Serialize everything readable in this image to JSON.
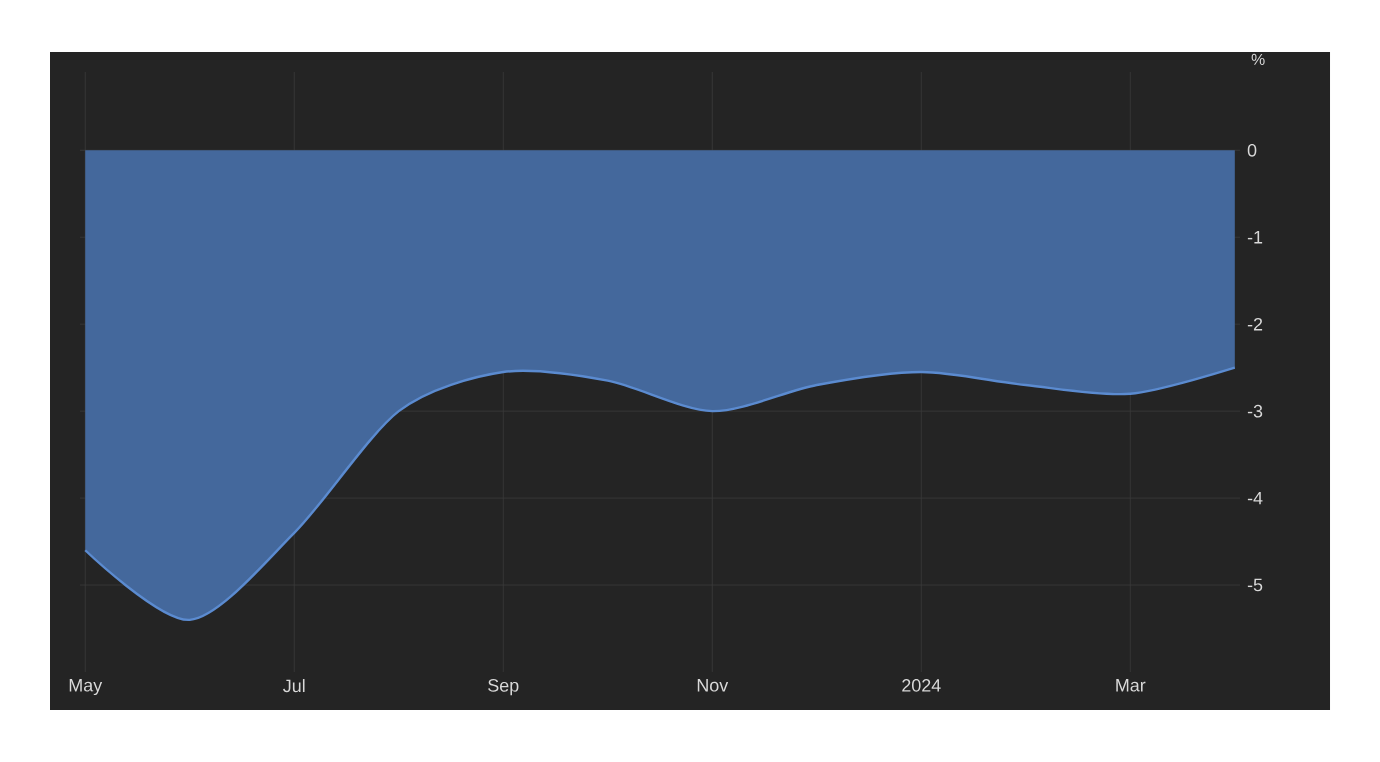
{
  "chart_data": {
    "type": "area",
    "ylabel": "%",
    "x": [
      "2023-05",
      "2023-06",
      "2023-07",
      "2023-08",
      "2023-09",
      "2023-10",
      "2023-11",
      "2023-12",
      "2024-01",
      "2024-02",
      "2024-03",
      "2024-04"
    ],
    "values": [
      -4.6,
      -5.4,
      -4.4,
      -3.0,
      -2.55,
      -2.65,
      -3.0,
      -2.7,
      -2.55,
      -2.7,
      -2.8,
      -2.5
    ],
    "color": "#5b8bd0",
    "xlim": [
      "2023-05",
      "2024-04"
    ],
    "xticks": [
      {
        "value": "2023-05",
        "label": "May"
      },
      {
        "value": "2023-07",
        "label": "Jul"
      },
      {
        "value": "2023-09",
        "label": "Sep"
      },
      {
        "value": "2023-11",
        "label": "Nov"
      },
      {
        "value": "2024-01",
        "label": "2024"
      },
      {
        "value": "2024-03",
        "label": "Mar"
      }
    ],
    "ylim": [
      -6,
      0.9
    ],
    "yticks": [
      0,
      -1,
      -2,
      -3,
      -4,
      -5
    ],
    "grid": true
  }
}
